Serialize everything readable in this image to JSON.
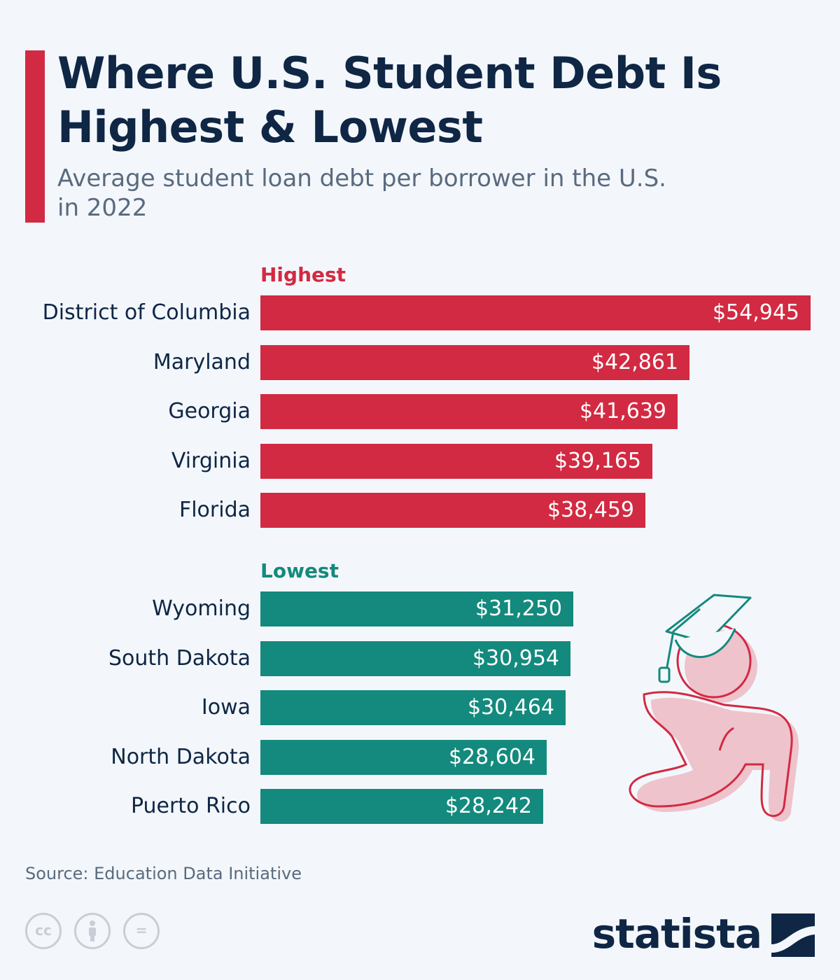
{
  "title": "Where U.S. Student Debt Is Highest & Lowest",
  "subtitle": "Average student loan debt per borrower in the U.S. in 2022",
  "source": "Source: Education Data Initiative",
  "brand": "statista",
  "license_icons": [
    "cc-icon",
    "attribution-icon",
    "no-derivatives-icon"
  ],
  "license_glyphs": [
    "cc",
    "",
    "="
  ],
  "colors": {
    "highest": "#d22a42",
    "lowest": "#138a7d",
    "title": "#0f2645",
    "accent": "#d22a42"
  },
  "chart_data": {
    "type": "bar",
    "orientation": "horizontal",
    "title": "Where U.S. Student Debt Is Highest & Lowest",
    "subtitle": "Average student loan debt per borrower in the U.S. in 2022",
    "xlim": [
      0,
      54945
    ],
    "grid": false,
    "unit": "$",
    "groups": [
      {
        "name": "Highest",
        "color": "#d22a42",
        "categories": [
          "District of Columbia",
          "Maryland",
          "Georgia",
          "Virginia",
          "Florida"
        ],
        "values": [
          54945,
          42861,
          41639,
          39165,
          38459
        ],
        "labels": [
          "$54,945",
          "$42,861",
          "$41,639",
          "$39,165",
          "$38,459"
        ]
      },
      {
        "name": "Lowest",
        "color": "#138a7d",
        "categories": [
          "Wyoming",
          "South Dakota",
          "Iowa",
          "North Dakota",
          "Puerto Rico"
        ],
        "values": [
          31250,
          30954,
          30464,
          28604,
          28242
        ],
        "labels": [
          "$31,250",
          "$30,954",
          "$30,464",
          "$28,604",
          "$28,242"
        ]
      }
    ]
  }
}
